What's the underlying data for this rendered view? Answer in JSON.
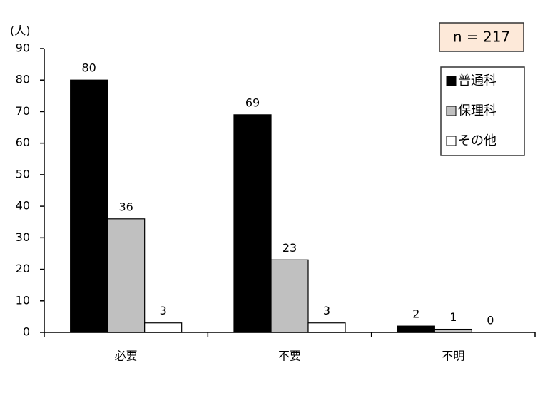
{
  "chart_data": {
    "type": "bar",
    "y_unit_label": "(人)",
    "annotation": "n = 217",
    "categories": [
      "必要",
      "不要",
      "不明"
    ],
    "series": [
      {
        "name": "普通科",
        "color": "#000000",
        "values": [
          80,
          69,
          2
        ]
      },
      {
        "name": "保理科",
        "color": "#c0c0c0",
        "values": [
          36,
          23,
          1
        ]
      },
      {
        "name": "その他",
        "color": "#ffffff",
        "values": [
          3,
          3,
          0
        ]
      }
    ],
    "ylim": [
      0,
      90
    ],
    "yticks": [
      0,
      10,
      20,
      30,
      40,
      50,
      60,
      70,
      80,
      90
    ],
    "legend": "upper right"
  }
}
